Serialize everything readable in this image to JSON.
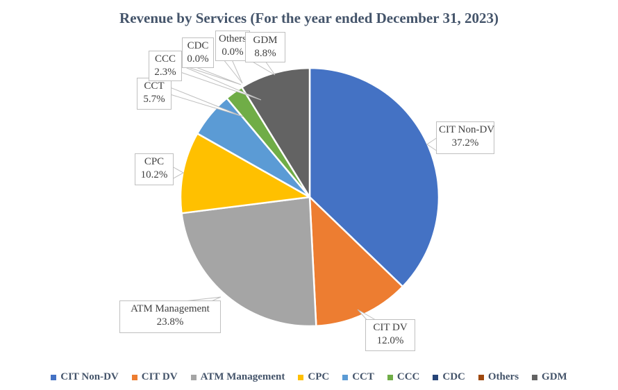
{
  "title": "Revenue by Services (For the year ended December 31, 2023)",
  "chart_data": {
    "type": "pie",
    "title": "Revenue by Services (For the year ended December 31, 2023)",
    "categories": [
      "CIT Non-DV",
      "CIT DV",
      "ATM Management",
      "CPC",
      "CCT",
      "CCC",
      "CDC",
      "Others",
      "GDM"
    ],
    "values": [
      37.2,
      12.0,
      23.8,
      10.2,
      5.7,
      2.3,
      0.0,
      0.0,
      8.8
    ],
    "labels": [
      "37.2%",
      "12.0%",
      "23.8%",
      "10.2%",
      "5.7%",
      "2.3%",
      "0.0%",
      "0.0%",
      "8.8%"
    ],
    "colors": [
      "#4472C4",
      "#ED7D31",
      "#A5A5A5",
      "#FFC000",
      "#5B9BD5",
      "#70AD47",
      "#264478",
      "#9E480E",
      "#636363"
    ],
    "start_angle_deg": 0,
    "direction": "clockwise",
    "slice_border_color": "#FFFFFF",
    "callout_border_color": "#BFBFBF",
    "text_color": "#404040",
    "legend_text_color": "#44546A",
    "legend_position": "bottom",
    "legend_entries": [
      "CIT Non-DV",
      "CIT DV",
      "ATM Management",
      "CPC",
      "CCT",
      "CCC",
      "CDC",
      "Others",
      "GDM"
    ]
  }
}
